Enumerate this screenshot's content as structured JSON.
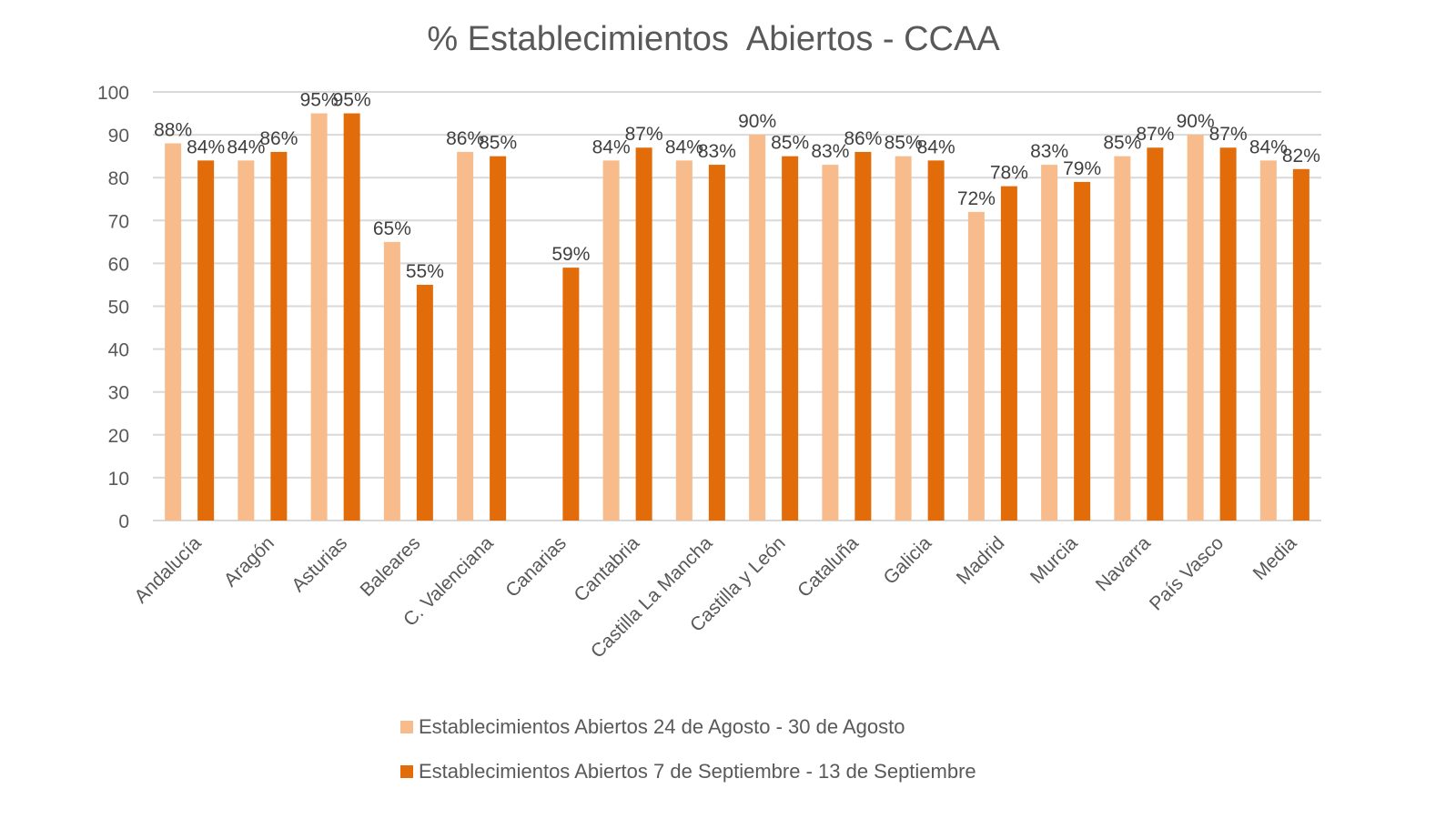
{
  "chart_data": {
    "type": "bar",
    "title": "% Establecimientos  Abiertos - CCAA",
    "xlabel": "",
    "ylabel": "",
    "ylim": [
      0,
      100
    ],
    "yticks": [
      "0",
      "10",
      "20",
      "30",
      "40",
      "50",
      "60",
      "70",
      "80",
      "90",
      "100"
    ],
    "grid": true,
    "legend_position": "bottom",
    "categories": [
      "Andalucía",
      "Aragón",
      "Asturias",
      "Baleares",
      "C. Valenciana",
      "Canarias",
      "Cantabria",
      "Castilla La Mancha",
      "Castilla y León",
      "Cataluña",
      "Galicia",
      "Madrid",
      "Murcia",
      "Navarra",
      "País Vasco",
      "Media"
    ],
    "series": [
      {
        "name": "Establecimientos Abiertos 24 de Agosto - 30 de Agosto",
        "color": "#F8BC8C",
        "values": [
          88,
          84,
          95,
          65,
          86,
          null,
          84,
          84,
          90,
          83,
          85,
          72,
          83,
          85,
          90,
          84
        ],
        "labels": [
          "88%",
          "84%",
          "95%",
          "65%",
          "86%",
          null,
          "84%",
          "84%",
          "90%",
          "83%",
          "85%",
          "72%",
          "83%",
          "85%",
          "90%",
          "84%"
        ]
      },
      {
        "name": "Establecimientos Abiertos 7 de Septiembre - 13 de Septiembre",
        "color": "#E36C0A",
        "values": [
          84,
          86,
          95,
          55,
          85,
          59,
          87,
          83,
          85,
          86,
          84,
          78,
          79,
          87,
          87,
          82
        ],
        "labels": [
          "84%",
          "86%",
          "95%",
          "55%",
          "85%",
          "59%",
          "87%",
          "83%",
          "85%",
          "86%",
          "84%",
          "78%",
          "79%",
          "87%",
          "87%",
          "82%"
        ]
      }
    ]
  }
}
